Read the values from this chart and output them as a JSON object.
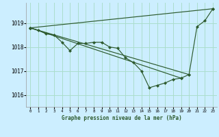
{
  "title": "Graphe pression niveau de la mer (hPa)",
  "background_color": "#cceeff",
  "grid_color": "#aaddcc",
  "line_color": "#2d5a2d",
  "marker_color": "#2d5a2d",
  "xlim": [
    -0.5,
    23.5
  ],
  "ylim": [
    1015.5,
    1019.85
  ],
  "yticks": [
    1016,
    1017,
    1018,
    1019
  ],
  "xticks": [
    0,
    1,
    2,
    3,
    4,
    5,
    6,
    7,
    8,
    9,
    10,
    11,
    12,
    13,
    14,
    15,
    16,
    17,
    18,
    19,
    20,
    21,
    22,
    23
  ],
  "main_series": [
    [
      0,
      1018.8
    ],
    [
      1,
      1018.7
    ],
    [
      2,
      1018.55
    ],
    [
      3,
      1018.5
    ],
    [
      4,
      1018.2
    ],
    [
      5,
      1017.85
    ],
    [
      6,
      1018.15
    ],
    [
      7,
      1018.15
    ],
    [
      8,
      1018.2
    ],
    [
      9,
      1018.2
    ],
    [
      10,
      1018.0
    ],
    [
      11,
      1017.95
    ],
    [
      12,
      1017.55
    ],
    [
      13,
      1017.35
    ],
    [
      14,
      1017.0
    ],
    [
      15,
      1016.3
    ],
    [
      16,
      1016.4
    ],
    [
      17,
      1016.5
    ],
    [
      18,
      1016.65
    ],
    [
      19,
      1016.7
    ],
    [
      20,
      1016.85
    ],
    [
      21,
      1018.85
    ],
    [
      22,
      1019.1
    ],
    [
      23,
      1019.6
    ]
  ],
  "extra_lines": [
    [
      [
        0,
        1018.8
      ],
      [
        23,
        1019.6
      ]
    ],
    [
      [
        0,
        1018.8
      ],
      [
        20,
        1016.85
      ]
    ],
    [
      [
        0,
        1018.8
      ],
      [
        19,
        1016.7
      ]
    ]
  ]
}
